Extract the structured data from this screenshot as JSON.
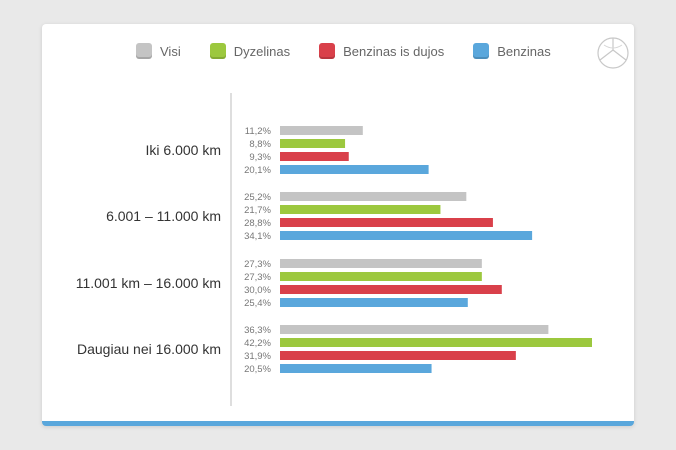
{
  "legend": [
    {
      "label": "Visi",
      "color": "#c4c4c4"
    },
    {
      "label": "Dyzelinas",
      "color": "#9cc83e"
    },
    {
      "label": "Benzinas is dujos",
      "color": "#d9404a"
    },
    {
      "label": "Benzinas",
      "color": "#5aa7dc"
    }
  ],
  "logo_icon": "dealer-logo-icon",
  "chart_data": {
    "type": "bar",
    "orientation": "horizontal",
    "categories": [
      "Iki 6.000 km",
      "6.001 – 11.000 km",
      "11.001 km – 16.000 km",
      "Daugiau nei 16.000 km"
    ],
    "series": [
      {
        "name": "Visi",
        "color": "#c4c4c4",
        "values": [
          11.2,
          25.2,
          27.3,
          36.3
        ],
        "labels": [
          "11,2%",
          "25,2%",
          "27,3%",
          "36,3%"
        ]
      },
      {
        "name": "Dyzelinas",
        "color": "#9cc83e",
        "values": [
          8.8,
          21.7,
          27.3,
          42.2
        ],
        "labels": [
          "8,8%",
          "21,7%",
          "27,3%",
          "42,2%"
        ]
      },
      {
        "name": "Benzinas is dujos",
        "color": "#d9404a",
        "values": [
          9.3,
          28.8,
          30.0,
          31.9
        ],
        "labels": [
          "9,3%",
          "28,8%",
          "30,0%",
          "31,9%"
        ]
      },
      {
        "name": "Benzinas",
        "color": "#5aa7dc",
        "values": [
          20.1,
          34.1,
          25.4,
          20.5
        ],
        "labels": [
          "20,1%",
          "34,1%",
          "25,4%",
          "20,5%"
        ]
      }
    ],
    "xlim": [
      0,
      42.2
    ],
    "grid": false,
    "legend_position": "top"
  }
}
